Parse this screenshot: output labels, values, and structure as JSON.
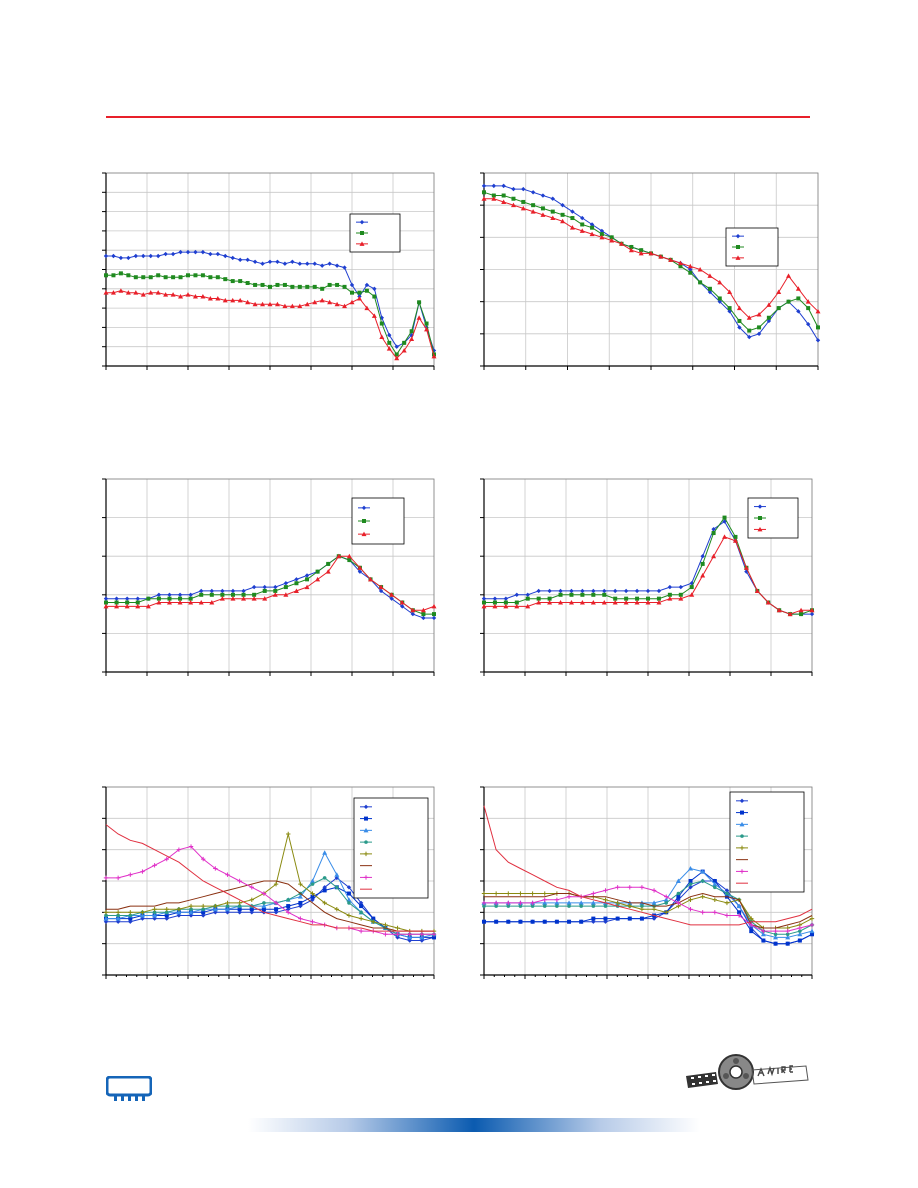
{
  "colors": {
    "rule": "#e8202a",
    "grid": "#c8c8c8",
    "axis": "#000000",
    "logo": "#1565b8"
  },
  "chart_data": [
    {
      "type": "line",
      "grid": true,
      "legend": "top-right",
      "xlim": [
        0,
        8
      ],
      "ylim": [
        0,
        10
      ],
      "series": [
        {
          "color": "#1f3fd0",
          "marker": "diamond",
          "values": [
            5.7,
            5.7,
            5.6,
            5.6,
            5.7,
            5.7,
            5.7,
            5.7,
            5.8,
            5.8,
            5.9,
            5.9,
            5.9,
            5.9,
            5.8,
            5.8,
            5.7,
            5.6,
            5.5,
            5.5,
            5.4,
            5.3,
            5.4,
            5.4,
            5.3,
            5.4,
            5.3,
            5.3,
            5.3,
            5.2,
            5.3,
            5.2,
            5.1,
            4.2,
            3.6,
            4.2,
            4.0,
            2.5,
            1.6,
            1.0,
            1.2,
            1.6,
            3.3,
            2.0,
            0.8
          ]
        },
        {
          "color": "#1f8a1f",
          "marker": "square",
          "values": [
            4.7,
            4.7,
            4.8,
            4.7,
            4.6,
            4.6,
            4.6,
            4.7,
            4.6,
            4.6,
            4.6,
            4.7,
            4.7,
            4.7,
            4.6,
            4.6,
            4.5,
            4.4,
            4.4,
            4.3,
            4.2,
            4.2,
            4.1,
            4.2,
            4.2,
            4.1,
            4.1,
            4.1,
            4.1,
            4.0,
            4.2,
            4.2,
            4.1,
            3.8,
            3.8,
            3.9,
            3.6,
            2.2,
            1.2,
            0.6,
            1.2,
            1.8,
            3.3,
            2.2,
            0.6
          ]
        },
        {
          "color": "#e8202a",
          "marker": "triangle",
          "values": [
            3.8,
            3.8,
            3.9,
            3.8,
            3.8,
            3.7,
            3.8,
            3.8,
            3.7,
            3.7,
            3.6,
            3.7,
            3.6,
            3.6,
            3.5,
            3.5,
            3.4,
            3.4,
            3.4,
            3.3,
            3.2,
            3.2,
            3.2,
            3.2,
            3.1,
            3.1,
            3.1,
            3.2,
            3.3,
            3.4,
            3.3,
            3.2,
            3.1,
            3.3,
            3.5,
            3.0,
            2.6,
            1.5,
            0.9,
            0.4,
            0.8,
            1.4,
            2.5,
            1.9,
            0.5
          ]
        }
      ]
    },
    {
      "type": "line",
      "grid": true,
      "legend": "top-right",
      "xlim": [
        0,
        8
      ],
      "ylim": [
        0,
        6
      ],
      "series": [
        {
          "color": "#1f3fd0",
          "marker": "diamond",
          "values": [
            5.6,
            5.6,
            5.6,
            5.5,
            5.5,
            5.4,
            5.3,
            5.2,
            5.0,
            4.8,
            4.6,
            4.4,
            4.2,
            4.0,
            3.8,
            3.7,
            3.6,
            3.5,
            3.4,
            3.3,
            3.2,
            3.0,
            2.6,
            2.3,
            2.0,
            1.7,
            1.2,
            0.9,
            1.0,
            1.4,
            1.8,
            2.0,
            1.7,
            1.3,
            0.8
          ]
        },
        {
          "color": "#1f8a1f",
          "marker": "square",
          "values": [
            5.4,
            5.3,
            5.3,
            5.2,
            5.1,
            5.0,
            4.9,
            4.8,
            4.7,
            4.6,
            4.4,
            4.3,
            4.1,
            4.0,
            3.8,
            3.7,
            3.6,
            3.5,
            3.4,
            3.3,
            3.1,
            2.9,
            2.6,
            2.4,
            2.1,
            1.8,
            1.4,
            1.1,
            1.2,
            1.5,
            1.8,
            2.0,
            2.1,
            1.8,
            1.2
          ]
        },
        {
          "color": "#e8202a",
          "marker": "triangle",
          "values": [
            5.2,
            5.2,
            5.1,
            5.0,
            4.9,
            4.8,
            4.7,
            4.6,
            4.5,
            4.3,
            4.2,
            4.1,
            4.0,
            3.9,
            3.8,
            3.6,
            3.5,
            3.5,
            3.4,
            3.3,
            3.2,
            3.1,
            3.0,
            2.8,
            2.6,
            2.3,
            1.8,
            1.5,
            1.6,
            1.9,
            2.3,
            2.8,
            2.4,
            2.0,
            1.7
          ]
        }
      ]
    },
    {
      "type": "line",
      "grid": true,
      "legend": "top-right",
      "xlim": [
        0,
        8
      ],
      "ylim": [
        0,
        5
      ],
      "series": [
        {
          "color": "#1f3fd0",
          "marker": "diamond",
          "values": [
            1.9,
            1.9,
            1.9,
            1.9,
            1.9,
            2.0,
            2.0,
            2.0,
            2.0,
            2.1,
            2.1,
            2.1,
            2.1,
            2.1,
            2.2,
            2.2,
            2.2,
            2.3,
            2.4,
            2.5,
            2.6,
            2.8,
            3.0,
            2.9,
            2.6,
            2.4,
            2.1,
            1.9,
            1.7,
            1.5,
            1.4,
            1.4
          ]
        },
        {
          "color": "#1f8a1f",
          "marker": "square",
          "values": [
            1.8,
            1.8,
            1.8,
            1.8,
            1.9,
            1.9,
            1.9,
            1.9,
            1.9,
            2.0,
            2.0,
            2.0,
            2.0,
            2.0,
            2.0,
            2.1,
            2.1,
            2.2,
            2.3,
            2.4,
            2.6,
            2.8,
            3.0,
            2.9,
            2.7,
            2.4,
            2.2,
            2.0,
            1.8,
            1.6,
            1.5,
            1.5
          ]
        },
        {
          "color": "#e8202a",
          "marker": "triangle",
          "values": [
            1.7,
            1.7,
            1.7,
            1.7,
            1.7,
            1.8,
            1.8,
            1.8,
            1.8,
            1.8,
            1.8,
            1.9,
            1.9,
            1.9,
            1.9,
            1.9,
            2.0,
            2.0,
            2.1,
            2.2,
            2.4,
            2.6,
            3.0,
            3.0,
            2.7,
            2.4,
            2.2,
            2.0,
            1.8,
            1.6,
            1.6,
            1.7
          ]
        }
      ]
    },
    {
      "type": "line",
      "grid": true,
      "legend": "top-right",
      "xlim": [
        0,
        8
      ],
      "ylim": [
        0,
        5
      ],
      "series": [
        {
          "color": "#1f3fd0",
          "marker": "diamond",
          "values": [
            1.9,
            1.9,
            1.9,
            2.0,
            2.0,
            2.1,
            2.1,
            2.1,
            2.1,
            2.1,
            2.1,
            2.1,
            2.1,
            2.1,
            2.1,
            2.1,
            2.1,
            2.2,
            2.2,
            2.3,
            3.0,
            3.7,
            3.9,
            3.4,
            2.6,
            2.1,
            1.8,
            1.6,
            1.5,
            1.5,
            1.5
          ]
        },
        {
          "color": "#1f8a1f",
          "marker": "square",
          "values": [
            1.8,
            1.8,
            1.8,
            1.8,
            1.9,
            1.9,
            1.9,
            2.0,
            2.0,
            2.0,
            2.0,
            2.0,
            1.9,
            1.9,
            1.9,
            1.9,
            1.9,
            2.0,
            2.0,
            2.2,
            2.8,
            3.6,
            4.0,
            3.5,
            2.7,
            2.1,
            1.8,
            1.6,
            1.5,
            1.5,
            1.6
          ]
        },
        {
          "color": "#e8202a",
          "marker": "triangle",
          "values": [
            1.7,
            1.7,
            1.7,
            1.7,
            1.7,
            1.8,
            1.8,
            1.8,
            1.8,
            1.8,
            1.8,
            1.8,
            1.8,
            1.8,
            1.8,
            1.8,
            1.8,
            1.9,
            1.9,
            2.0,
            2.5,
            3.0,
            3.5,
            3.4,
            2.7,
            2.1,
            1.8,
            1.6,
            1.5,
            1.6,
            1.6
          ]
        }
      ]
    },
    {
      "type": "line",
      "grid": true,
      "legend": "top-right",
      "xlim": [
        0,
        8
      ],
      "ylim": [
        0,
        6
      ],
      "series": [
        {
          "color": "#1f3fd0",
          "marker": "diamond",
          "values": [
            1.7,
            1.7,
            1.7,
            1.8,
            1.8,
            1.8,
            1.9,
            1.9,
            1.9,
            2.0,
            2.0,
            2.0,
            2.0,
            2.0,
            2.0,
            2.1,
            2.2,
            2.4,
            2.8,
            3.1,
            2.8,
            2.3,
            1.8,
            1.5,
            1.2,
            1.1,
            1.1,
            1.2
          ]
        },
        {
          "color": "#0033cc",
          "marker": "square",
          "values": [
            1.8,
            1.8,
            1.8,
            1.9,
            1.9,
            1.9,
            2.0,
            2.0,
            2.0,
            2.1,
            2.1,
            2.1,
            2.1,
            2.1,
            2.1,
            2.2,
            2.3,
            2.5,
            2.7,
            2.8,
            2.6,
            2.2,
            1.8,
            1.5,
            1.3,
            1.2,
            1.2,
            1.2
          ]
        },
        {
          "color": "#3a8de8",
          "marker": "triangle",
          "values": [
            1.8,
            1.8,
            1.9,
            1.9,
            1.9,
            2.0,
            2.0,
            2.0,
            2.1,
            2.1,
            2.1,
            2.2,
            2.2,
            2.2,
            2.3,
            2.4,
            2.5,
            3.0,
            3.9,
            3.2,
            2.4,
            2.0,
            1.7,
            1.5,
            1.3,
            1.2,
            1.2,
            1.3
          ]
        },
        {
          "color": "#2a9a8a",
          "marker": "circle",
          "values": [
            1.9,
            1.9,
            1.9,
            2.0,
            2.0,
            2.0,
            2.1,
            2.1,
            2.1,
            2.2,
            2.2,
            2.2,
            2.2,
            2.3,
            2.3,
            2.4,
            2.6,
            2.9,
            3.1,
            2.8,
            2.3,
            2.0,
            1.7,
            1.5,
            1.3,
            1.3,
            1.3,
            1.3
          ]
        },
        {
          "color": "#8a8a10",
          "marker": "star",
          "values": [
            2.0,
            2.0,
            2.0,
            2.0,
            2.1,
            2.1,
            2.1,
            2.2,
            2.2,
            2.2,
            2.3,
            2.3,
            2.4,
            2.6,
            2.9,
            4.5,
            2.9,
            2.6,
            2.3,
            2.1,
            1.9,
            1.8,
            1.7,
            1.6,
            1.5,
            1.4,
            1.4,
            1.4
          ]
        },
        {
          "color": "#8a3010",
          "marker": "none",
          "values": [
            2.1,
            2.1,
            2.2,
            2.2,
            2.2,
            2.3,
            2.3,
            2.4,
            2.5,
            2.6,
            2.7,
            2.8,
            2.9,
            3.0,
            3.0,
            2.9,
            2.6,
            2.3,
            2.0,
            1.8,
            1.7,
            1.6,
            1.5,
            1.5,
            1.4,
            1.4,
            1.4,
            1.4
          ]
        },
        {
          "color": "#e030c8",
          "marker": "plus",
          "values": [
            3.1,
            3.1,
            3.2,
            3.3,
            3.5,
            3.7,
            4.0,
            4.1,
            3.7,
            3.4,
            3.2,
            3.0,
            2.8,
            2.6,
            2.3,
            2.0,
            1.8,
            1.7,
            1.6,
            1.5,
            1.5,
            1.4,
            1.4,
            1.3,
            1.3,
            1.3,
            1.3,
            1.3
          ]
        },
        {
          "color": "#e03040",
          "marker": "none",
          "values": [
            4.8,
            4.5,
            4.3,
            4.2,
            4.0,
            3.8,
            3.6,
            3.3,
            3.0,
            2.8,
            2.6,
            2.4,
            2.2,
            2.0,
            1.9,
            1.8,
            1.7,
            1.6,
            1.6,
            1.5,
            1.5,
            1.5,
            1.4,
            1.4,
            1.4,
            1.4,
            1.4,
            1.4
          ]
        }
      ]
    },
    {
      "type": "line",
      "grid": true,
      "legend": "top-right",
      "xlim": [
        0,
        8
      ],
      "ylim": [
        0,
        6
      ],
      "series": [
        {
          "color": "#1f3fd0",
          "marker": "diamond",
          "values": [
            1.7,
            1.7,
            1.7,
            1.7,
            1.7,
            1.7,
            1.7,
            1.7,
            1.7,
            1.7,
            1.7,
            1.8,
            1.8,
            1.8,
            1.8,
            2.0,
            2.4,
            2.8,
            3.0,
            3.0,
            2.7,
            2.2,
            1.5,
            1.1,
            1.0,
            1.0,
            1.1,
            1.3
          ]
        },
        {
          "color": "#0033cc",
          "marker": "square",
          "values": [
            1.7,
            1.7,
            1.7,
            1.7,
            1.7,
            1.7,
            1.7,
            1.7,
            1.7,
            1.8,
            1.8,
            1.8,
            1.8,
            1.8,
            1.9,
            2.0,
            2.5,
            3.0,
            3.3,
            3.0,
            2.5,
            2.0,
            1.4,
            1.1,
            1.0,
            1.0,
            1.1,
            1.3
          ]
        },
        {
          "color": "#3a8de8",
          "marker": "triangle",
          "values": [
            2.3,
            2.3,
            2.3,
            2.3,
            2.3,
            2.3,
            2.3,
            2.3,
            2.3,
            2.3,
            2.3,
            2.3,
            2.3,
            2.3,
            2.3,
            2.4,
            3.0,
            3.4,
            3.3,
            2.9,
            2.6,
            2.2,
            1.6,
            1.3,
            1.2,
            1.2,
            1.3,
            1.4
          ]
        },
        {
          "color": "#2a9a8a",
          "marker": "circle",
          "values": [
            2.2,
            2.2,
            2.2,
            2.2,
            2.2,
            2.2,
            2.2,
            2.2,
            2.2,
            2.2,
            2.2,
            2.2,
            2.2,
            2.2,
            2.2,
            2.3,
            2.6,
            2.9,
            3.0,
            2.8,
            2.6,
            2.4,
            1.7,
            1.4,
            1.3,
            1.3,
            1.4,
            1.6
          ]
        },
        {
          "color": "#8a8a10",
          "marker": "star",
          "values": [
            2.6,
            2.6,
            2.6,
            2.6,
            2.6,
            2.6,
            2.6,
            2.6,
            2.5,
            2.5,
            2.4,
            2.3,
            2.2,
            2.1,
            2.1,
            2.0,
            2.2,
            2.4,
            2.5,
            2.4,
            2.3,
            2.4,
            1.8,
            1.5,
            1.5,
            1.5,
            1.6,
            1.8
          ]
        },
        {
          "color": "#8a3010",
          "marker": "none",
          "values": [
            2.5,
            2.5,
            2.5,
            2.5,
            2.5,
            2.5,
            2.6,
            2.6,
            2.5,
            2.5,
            2.5,
            2.4,
            2.3,
            2.3,
            2.2,
            2.2,
            2.3,
            2.5,
            2.6,
            2.5,
            2.5,
            2.4,
            1.6,
            1.5,
            1.5,
            1.6,
            1.7,
            1.9
          ]
        },
        {
          "color": "#e030c8",
          "marker": "plus",
          "values": [
            2.3,
            2.3,
            2.3,
            2.3,
            2.3,
            2.4,
            2.4,
            2.5,
            2.5,
            2.6,
            2.7,
            2.8,
            2.8,
            2.8,
            2.7,
            2.5,
            2.3,
            2.1,
            2.0,
            2.0,
            1.9,
            1.9,
            1.6,
            1.4,
            1.4,
            1.4,
            1.5,
            1.6
          ]
        },
        {
          "color": "#e03040",
          "marker": "none",
          "values": [
            5.4,
            4.0,
            3.6,
            3.4,
            3.2,
            3.0,
            2.8,
            2.7,
            2.5,
            2.4,
            2.3,
            2.2,
            2.1,
            2.0,
            1.9,
            1.8,
            1.7,
            1.6,
            1.6,
            1.6,
            1.6,
            1.6,
            1.7,
            1.7,
            1.7,
            1.8,
            1.9,
            2.1
          ]
        }
      ]
    }
  ]
}
